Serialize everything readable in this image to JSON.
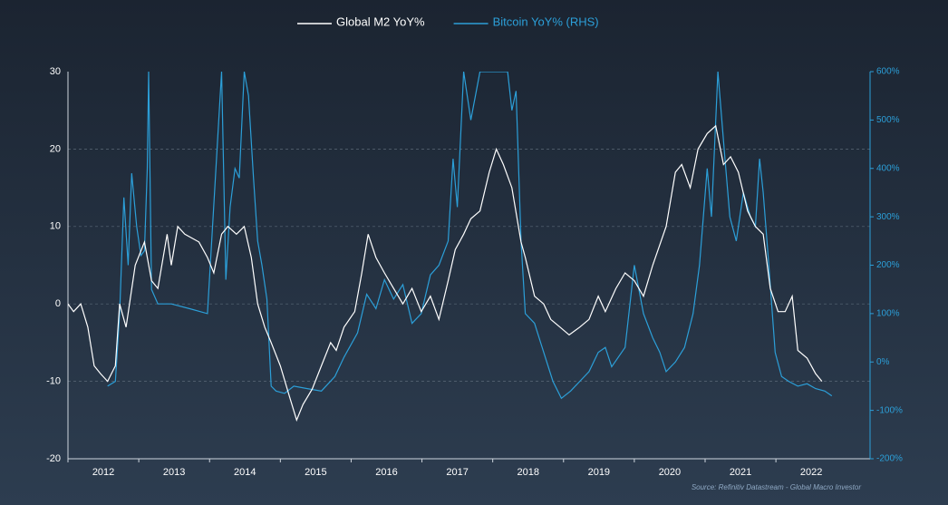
{
  "chart_data": {
    "type": "line",
    "legend": "top",
    "source": "Source: Refinitiv Datastream - Global Macro Investor",
    "xlim": [
      2012,
      2023.33
    ],
    "xticks": [
      2012,
      2013,
      2014,
      2015,
      2016,
      2017,
      2018,
      2019,
      2020,
      2021,
      2022
    ],
    "ylim": [
      -20,
      30
    ],
    "yticks": [
      -20,
      -10,
      0,
      10,
      20,
      30
    ],
    "y2lim": [
      -200,
      600
    ],
    "y2ticks": [
      {
        "value": -200,
        "label": "-200%"
      },
      {
        "value": -100,
        "label": "-100%"
      },
      {
        "value": 0,
        "label": "0%"
      },
      {
        "value": 100,
        "label": "100%"
      },
      {
        "value": 200,
        "label": "200%"
      },
      {
        "value": 300,
        "label": "300%"
      },
      {
        "value": 400,
        "label": "400%"
      },
      {
        "value": 500,
        "label": "500%"
      },
      {
        "value": 600,
        "label": "600%"
      }
    ],
    "grid": true,
    "series": [
      {
        "name": "Global M2 YoY%",
        "color": "#ffffff",
        "x": [
          2012.0,
          2012.08,
          2012.18,
          2012.28,
          2012.37,
          2012.46,
          2012.56,
          2012.67,
          2012.73,
          2012.82,
          2012.95,
          2013.08,
          2013.18,
          2013.27,
          2013.4,
          2013.46,
          2013.55,
          2013.65,
          2013.85,
          2013.97,
          2014.06,
          2014.17,
          2014.26,
          2014.38,
          2014.49,
          2014.59,
          2014.68,
          2014.78,
          2014.87,
          2015.0,
          2015.13,
          2015.23,
          2015.32,
          2015.45,
          2015.58,
          2015.71,
          2015.79,
          2015.9,
          2016.05,
          2016.15,
          2016.24,
          2016.35,
          2016.47,
          2016.6,
          2016.73,
          2016.86,
          2016.99,
          2017.12,
          2017.24,
          2017.37,
          2017.47,
          2017.59,
          2017.69,
          2017.82,
          2017.95,
          2018.05,
          2018.15,
          2018.27,
          2018.4,
          2018.46,
          2018.59,
          2018.72,
          2018.82,
          2018.95,
          2019.08,
          2019.23,
          2019.36,
          2019.49,
          2019.59,
          2019.74,
          2019.87,
          2020.0,
          2020.13,
          2020.26,
          2020.45,
          2020.58,
          2020.67,
          2020.79,
          2020.9,
          2021.03,
          2021.15,
          2021.26,
          2021.36,
          2021.47,
          2021.6,
          2021.71,
          2021.82,
          2021.92,
          2022.03,
          2022.13,
          2022.23,
          2022.31,
          2022.44,
          2022.56,
          2022.65
        ],
        "values": [
          0,
          -1,
          0,
          -3,
          -8,
          -9,
          -10,
          -8,
          0,
          -3,
          5,
          8,
          3,
          2,
          9,
          5,
          10,
          9,
          8,
          6,
          4,
          9,
          10,
          9,
          10,
          6,
          0,
          -3,
          -5,
          -8,
          -12,
          -15,
          -13,
          -11,
          -8,
          -5,
          -6,
          -3,
          -1,
          4,
          9,
          6,
          4,
          2,
          0,
          2,
          -1,
          1,
          -2,
          3,
          7,
          9,
          11,
          12,
          17,
          20,
          18,
          15,
          8,
          6,
          1,
          0,
          -2,
          -3,
          -4,
          -3,
          -2,
          1,
          -1,
          2,
          4,
          3,
          1,
          5,
          10,
          17,
          18,
          15,
          20,
          22,
          23,
          18,
          19,
          17,
          12,
          10,
          9,
          2,
          -1,
          -1,
          1,
          -6,
          -7,
          -9,
          -10
        ]
      },
      {
        "name": "Bitcoin YoY% (RHS)",
        "color": "#2c9fd8",
        "axis": "y2",
        "x": [
          2012.56,
          2012.67,
          2012.73,
          2012.79,
          2012.85,
          2012.9,
          2012.97,
          2013.03,
          2013.08,
          2013.12,
          2013.14,
          2013.18,
          2013.27,
          2013.46,
          2013.72,
          2013.97,
          2014.17,
          2014.23,
          2014.29,
          2014.36,
          2014.42,
          2014.49,
          2014.55,
          2014.62,
          2014.68,
          2014.74,
          2014.81,
          2014.87,
          2014.94,
          2015.06,
          2015.19,
          2015.38,
          2015.58,
          2015.77,
          2015.9,
          2016.09,
          2016.22,
          2016.35,
          2016.47,
          2016.6,
          2016.73,
          2016.86,
          2016.99,
          2017.12,
          2017.24,
          2017.37,
          2017.44,
          2017.5,
          2017.59,
          2017.69,
          2017.82,
          2018.01,
          2018.21,
          2018.27,
          2018.33,
          2018.4,
          2018.46,
          2018.59,
          2018.72,
          2018.85,
          2018.97,
          2019.1,
          2019.23,
          2019.36,
          2019.49,
          2019.59,
          2019.68,
          2019.87,
          2020.0,
          2020.13,
          2020.26,
          2020.36,
          2020.45,
          2020.58,
          2020.71,
          2020.83,
          2020.92,
          2021.03,
          2021.09,
          2021.18,
          2021.28,
          2021.35,
          2021.44,
          2021.54,
          2021.64,
          2021.71,
          2021.77,
          2021.82,
          2021.9,
          2021.99,
          2022.08,
          2022.18,
          2022.31,
          2022.44,
          2022.56,
          2022.69,
          2022.79
        ],
        "values": [
          -50,
          -40,
          100,
          340,
          200,
          390,
          280,
          220,
          230,
          400,
          600,
          150,
          120,
          120,
          110,
          100,
          600,
          170,
          320,
          400,
          380,
          600,
          550,
          380,
          250,
          200,
          130,
          -50,
          -60,
          -65,
          -50,
          -55,
          -60,
          -30,
          10,
          60,
          140,
          110,
          170,
          130,
          160,
          80,
          100,
          180,
          200,
          250,
          420,
          320,
          600,
          500,
          600,
          600,
          600,
          520,
          560,
          250,
          100,
          80,
          20,
          -40,
          -75,
          -60,
          -40,
          -20,
          20,
          30,
          -10,
          30,
          200,
          100,
          50,
          20,
          -20,
          0,
          30,
          100,
          200,
          400,
          300,
          600,
          420,
          300,
          250,
          350,
          300,
          280,
          420,
          350,
          200,
          20,
          -30,
          -40,
          -50,
          -45,
          -55,
          -60,
          -70
        ]
      }
    ]
  }
}
